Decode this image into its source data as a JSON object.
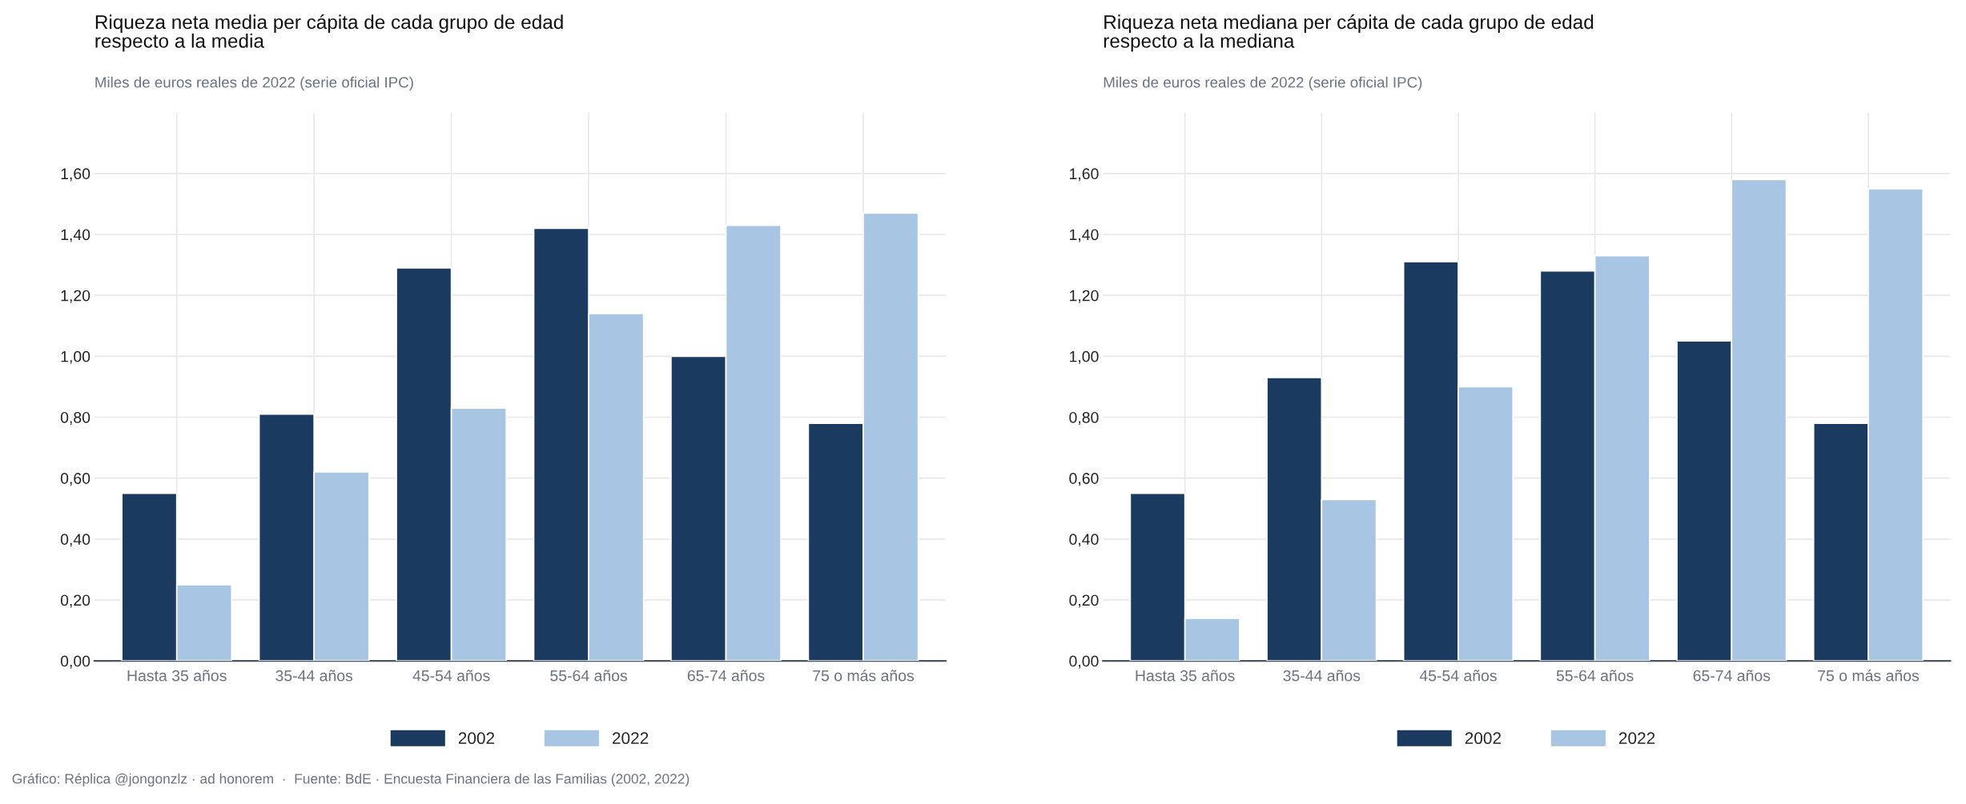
{
  "chart_data": [
    {
      "type": "bar",
      "title": "Riqueza neta media per cápita de cada grupo de edad\nrespecto a la media",
      "subtitle": "Miles de euros reales de 2022 (serie oficial IPC)",
      "categories": [
        "Hasta 35 años",
        "35-44 años",
        "45-54 años",
        "55-64 años",
        "65-74 años",
        "75 o más años"
      ],
      "series": [
        {
          "name": "2002",
          "color": "#1a3a5f",
          "values": [
            0.55,
            0.81,
            1.29,
            1.42,
            1.0,
            0.78
          ]
        },
        {
          "name": "2022",
          "color": "#a8c5e3",
          "values": [
            0.25,
            0.62,
            0.83,
            1.14,
            1.43,
            1.47
          ]
        }
      ],
      "ylim": [
        0,
        1.8
      ],
      "yticks": [
        {
          "value": 0,
          "label": "0,00"
        },
        {
          "value": 0.2,
          "label": "0,20"
        },
        {
          "value": 0.4,
          "label": "0,40"
        },
        {
          "value": 0.6,
          "label": "0,60"
        },
        {
          "value": 0.8,
          "label": "0,80"
        },
        {
          "value": 1.0,
          "label": "1,00"
        },
        {
          "value": 1.2,
          "label": "1,20"
        },
        {
          "value": 1.4,
          "label": "1,40"
        },
        {
          "value": 1.6,
          "label": "1,60"
        }
      ],
      "grid": true,
      "legend": "bottom",
      "annotations": [
        "Gráfico: Réplica @jongonzlz · ad honorem  ·  Fuente: BdE · Encuesta Financiera de las Familias (2002, 2022)"
      ]
    },
    {
      "type": "bar",
      "title": "Riqueza neta mediana per cápita de cada grupo de edad\nrespecto a la mediana",
      "subtitle": "Miles de euros reales de 2022 (serie oficial IPC)",
      "categories": [
        "Hasta 35 años",
        "35-44 años",
        "45-54 años",
        "55-64 años",
        "65-74 años",
        "75 o más años"
      ],
      "series": [
        {
          "name": "2002",
          "color": "#1a3a5f",
          "values": [
            0.55,
            0.93,
            1.31,
            1.28,
            1.05,
            0.78
          ]
        },
        {
          "name": "2022",
          "color": "#a8c5e3",
          "values": [
            0.14,
            0.53,
            0.9,
            1.33,
            1.58,
            1.55
          ]
        }
      ],
      "ylim": [
        0,
        1.8
      ],
      "yticks": [
        {
          "value": 0,
          "label": "0,00"
        },
        {
          "value": 0.2,
          "label": "0,20"
        },
        {
          "value": 0.4,
          "label": "0,40"
        },
        {
          "value": 0.6,
          "label": "0,60"
        },
        {
          "value": 0.8,
          "label": "0,80"
        },
        {
          "value": 1.0,
          "label": "1,00"
        },
        {
          "value": 1.2,
          "label": "1,20"
        },
        {
          "value": 1.4,
          "label": "1,40"
        },
        {
          "value": 1.6,
          "label": "1,60"
        }
      ],
      "grid": true,
      "legend": "bottom"
    }
  ]
}
